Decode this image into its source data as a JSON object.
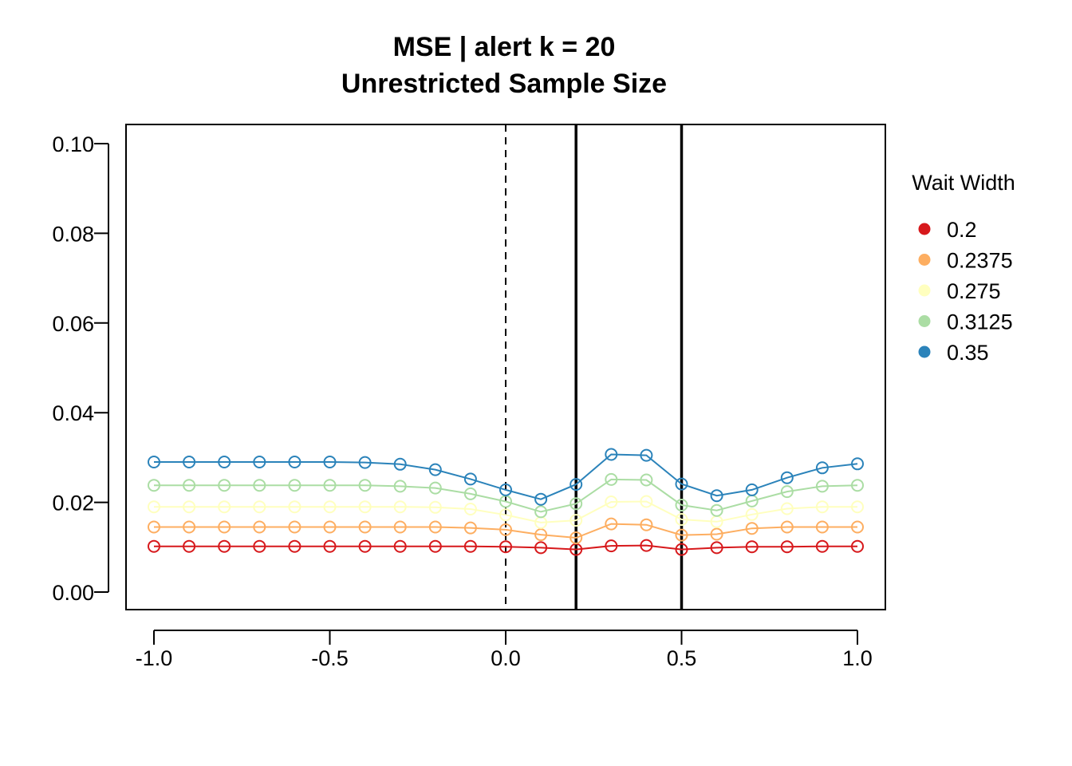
{
  "chart_data": {
    "type": "line",
    "title": "MSE | alert k = 20",
    "subtitle": "Unrestricted Sample Size",
    "xlabel": "",
    "ylabel": "",
    "xlim": [
      -1.0,
      1.0
    ],
    "ylim": [
      0.0,
      0.1
    ],
    "x_ticks": [
      "-1.0",
      "-0.5",
      "0.0",
      "0.5",
      "1.0"
    ],
    "y_ticks": [
      "0.00",
      "0.02",
      "0.04",
      "0.06",
      "0.08",
      "0.10"
    ],
    "x": [
      -1.0,
      -0.9,
      -0.8,
      -0.7,
      -0.6,
      -0.5,
      -0.4,
      -0.3,
      -0.2,
      -0.1,
      0.0,
      0.1,
      0.2,
      0.3,
      0.4,
      0.5,
      0.6,
      0.7,
      0.8,
      0.9,
      1.0
    ],
    "legend_title": "Wait Width",
    "legend_position": "right",
    "series": [
      {
        "name": "0.2",
        "color": "#d7191c",
        "values": [
          0.0102,
          0.0102,
          0.0102,
          0.0102,
          0.0102,
          0.0102,
          0.0102,
          0.0102,
          0.0102,
          0.0102,
          0.0101,
          0.0099,
          0.0095,
          0.0103,
          0.0104,
          0.0095,
          0.0099,
          0.0101,
          0.0101,
          0.0102,
          0.0102
        ]
      },
      {
        "name": "0.2375",
        "color": "#fdae61",
        "values": [
          0.0145,
          0.0145,
          0.0145,
          0.0145,
          0.0145,
          0.0145,
          0.0145,
          0.0145,
          0.0145,
          0.0143,
          0.0139,
          0.0128,
          0.0121,
          0.0152,
          0.015,
          0.0127,
          0.0129,
          0.0142,
          0.0145,
          0.0145,
          0.0145
        ]
      },
      {
        "name": "0.275",
        "color": "#ffffbf",
        "values": [
          0.019,
          0.019,
          0.019,
          0.019,
          0.019,
          0.019,
          0.019,
          0.019,
          0.0189,
          0.0185,
          0.0172,
          0.0155,
          0.016,
          0.0201,
          0.0202,
          0.0162,
          0.0157,
          0.0173,
          0.0186,
          0.019,
          0.019
        ]
      },
      {
        "name": "0.3125",
        "color": "#abdda4",
        "values": [
          0.0238,
          0.0238,
          0.0238,
          0.0238,
          0.0238,
          0.0238,
          0.0238,
          0.0236,
          0.0232,
          0.0219,
          0.0202,
          0.0179,
          0.0197,
          0.0251,
          0.025,
          0.0194,
          0.0182,
          0.0203,
          0.0224,
          0.0236,
          0.0238
        ]
      },
      {
        "name": "0.35",
        "color": "#2b83ba",
        "values": [
          0.029,
          0.029,
          0.029,
          0.029,
          0.029,
          0.029,
          0.0289,
          0.0285,
          0.0273,
          0.0252,
          0.0228,
          0.0207,
          0.024,
          0.0307,
          0.0305,
          0.0241,
          0.0215,
          0.0228,
          0.0255,
          0.0277,
          0.0286
        ]
      }
    ],
    "reference_lines": [
      {
        "x": 0.0,
        "style": "dashed"
      },
      {
        "x": 0.2,
        "style": "solid"
      },
      {
        "x": 0.5,
        "style": "solid"
      }
    ],
    "grid": false
  }
}
